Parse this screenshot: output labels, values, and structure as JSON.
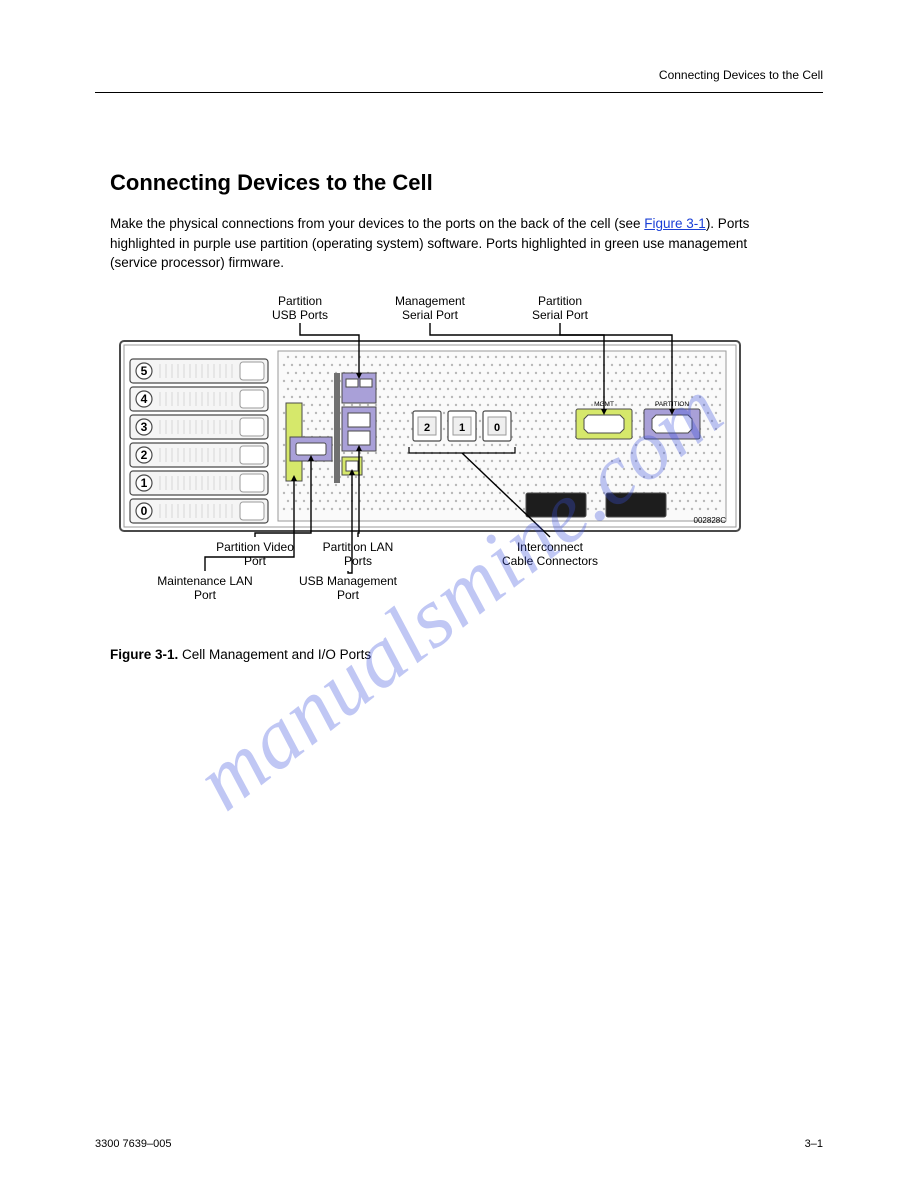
{
  "header": {
    "right": "Connecting Devices to the Cell"
  },
  "section": {
    "heading": "Connecting Devices to the Cell",
    "para_before_link": "Make the physical connections from your devices to the ports on the back of the cell (see ",
    "link_text": "Figure 3-1",
    "para_after_link": "). Ports highlighted in purple use partition (operating system) software. Ports highlighted in green use management (service processor) firmware."
  },
  "figure": {
    "number": "Figure 3-1.",
    "title": "Cell Management and I/O Ports",
    "labels": {
      "partition_usb": "Partition USB Ports",
      "mgmt_serial": "Management Serial Port",
      "partition_serial": "Partition Serial Port",
      "partition_video": "Partition Video Port",
      "partition_lan": "Partition LAN Ports",
      "interconnect": "Interconnect Cable Connectors",
      "maintenance_lan": "Maintenance LAN Port",
      "usb_mgmt": "USB Management Port",
      "mgmt_port_text": "MGMT",
      "partition_port_text": "PARTITION",
      "image_id": "002828C"
    },
    "slots": [
      "0",
      "1",
      "2",
      "3",
      "4",
      "5"
    ],
    "interconnects": [
      "0",
      "1",
      "2"
    ],
    "colors": {
      "partition_fill": "#a9a0d8",
      "management_fill": "#d6e86b",
      "chassis_stroke": "#4a4a4a",
      "chassis_light": "#9a9a9a",
      "bg": "#ffffff",
      "mesh": "#b8b8b8",
      "text": "#000000"
    },
    "styling": {
      "label_fontsize": 12,
      "slot_fontsize": 12,
      "stroke_width": 1.2,
      "leader_width": 1.4
    }
  },
  "watermark": "manualsmine.com",
  "footer": {
    "left": "3300 7639–005",
    "right": "3–1"
  }
}
